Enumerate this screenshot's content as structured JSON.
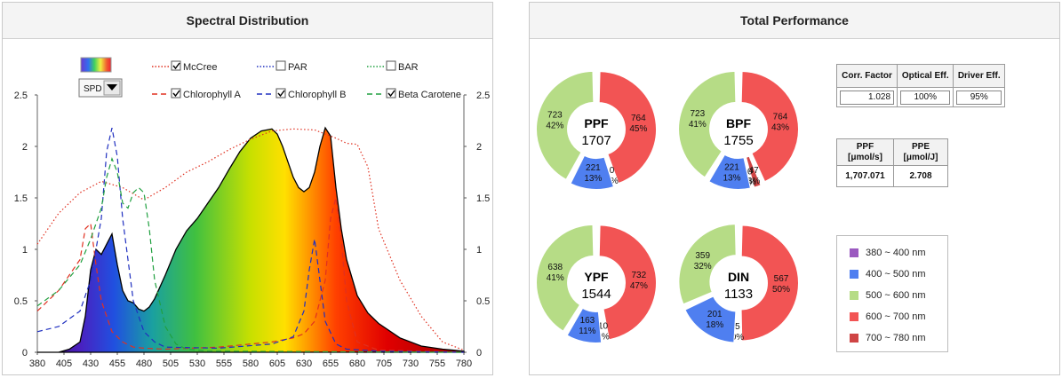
{
  "left_panel": {
    "title": "Spectral Distribution"
  },
  "right_panel": {
    "title": "Total Performance"
  },
  "controls": {
    "dropdown_value": "SPD",
    "legend": [
      {
        "label": "McCree",
        "checked": true,
        "color": "#e03020",
        "dash": "dotted"
      },
      {
        "label": "PAR",
        "checked": false,
        "color": "#2030c0",
        "dash": "dotted"
      },
      {
        "label": "BAR",
        "checked": false,
        "color": "#20a040",
        "dash": "dotted"
      },
      {
        "label": "Chlorophyll A",
        "checked": true,
        "color": "#e03020",
        "dash": "dashed"
      },
      {
        "label": "Chlorophyll B",
        "checked": true,
        "color": "#2030c0",
        "dash": "dashed"
      },
      {
        "label": "Beta Carotene",
        "checked": true,
        "color": "#20a040",
        "dash": "dashed"
      }
    ]
  },
  "chart_data": [
    {
      "type": "area",
      "title": "Spectral Distribution",
      "xlim": [
        380,
        780
      ],
      "ylim": [
        0,
        2.5
      ],
      "x_ticks": [
        380,
        405,
        430,
        455,
        480,
        505,
        530,
        555,
        580,
        605,
        630,
        655,
        680,
        705,
        730,
        755,
        780
      ],
      "y_ticks": [
        0,
        0.5,
        1,
        1.5,
        2,
        2.5
      ],
      "y_tick_labels": [
        "0",
        "0.5",
        "1",
        "1.5",
        "2",
        "2.5"
      ],
      "right_y_tick_labels": [
        "0",
        "0.5",
        "1",
        "1.5",
        "2",
        "2.5"
      ],
      "series": [
        {
          "name": "SPD",
          "x": [
            380,
            400,
            410,
            420,
            425,
            430,
            435,
            440,
            445,
            450,
            455,
            460,
            465,
            470,
            475,
            480,
            485,
            490,
            500,
            510,
            520,
            530,
            540,
            550,
            560,
            570,
            580,
            590,
            600,
            605,
            610,
            615,
            620,
            625,
            630,
            635,
            640,
            645,
            650,
            655,
            660,
            665,
            670,
            680,
            690,
            700,
            720,
            740,
            760,
            780
          ],
          "y": [
            0,
            0,
            0.03,
            0.1,
            0.35,
            0.8,
            1.0,
            0.95,
            1.05,
            1.15,
            0.85,
            0.6,
            0.5,
            0.48,
            0.42,
            0.4,
            0.44,
            0.52,
            0.75,
            1.0,
            1.18,
            1.3,
            1.45,
            1.6,
            1.78,
            1.95,
            2.08,
            2.15,
            2.17,
            2.12,
            2.0,
            1.85,
            1.7,
            1.6,
            1.56,
            1.6,
            1.75,
            2.0,
            2.18,
            2.1,
            1.6,
            1.2,
            0.9,
            0.55,
            0.38,
            0.28,
            0.14,
            0.06,
            0.03,
            0.01
          ]
        },
        {
          "name": "McCree",
          "x": [
            380,
            400,
            420,
            440,
            460,
            480,
            500,
            520,
            540,
            560,
            580,
            600,
            620,
            640,
            660,
            670,
            680,
            690,
            700,
            720,
            740,
            760,
            780
          ],
          "y": [
            1.05,
            1.35,
            1.55,
            1.66,
            1.6,
            1.48,
            1.6,
            1.75,
            1.85,
            1.97,
            2.07,
            2.15,
            2.17,
            2.16,
            2.08,
            2.03,
            2.02,
            1.8,
            1.2,
            0.7,
            0.35,
            0.1,
            0.02
          ]
        },
        {
          "name": "Chlorophyll A",
          "x": [
            380,
            390,
            400,
            410,
            420,
            425,
            430,
            435,
            440,
            450,
            460,
            470,
            480,
            500,
            550,
            600,
            620,
            630,
            640,
            650,
            655,
            660,
            665,
            670,
            680,
            700,
            780
          ],
          "y": [
            0.4,
            0.5,
            0.6,
            0.75,
            0.9,
            1.2,
            1.25,
            0.85,
            0.5,
            0.2,
            0.1,
            0.05,
            0.04,
            0.03,
            0.05,
            0.1,
            0.14,
            0.18,
            0.3,
            0.7,
            1.3,
            1.5,
            1.1,
            0.5,
            0.1,
            0.02,
            0
          ]
        },
        {
          "name": "Chlorophyll B",
          "x": [
            380,
            400,
            420,
            430,
            440,
            445,
            450,
            455,
            460,
            470,
            480,
            490,
            500,
            550,
            600,
            620,
            630,
            635,
            640,
            645,
            650,
            660,
            670,
            700,
            780
          ],
          "y": [
            0.2,
            0.25,
            0.4,
            0.7,
            1.3,
            1.95,
            2.18,
            1.9,
            1.3,
            0.5,
            0.2,
            0.1,
            0.05,
            0.04,
            0.08,
            0.15,
            0.4,
            0.8,
            1.1,
            0.7,
            0.3,
            0.08,
            0.03,
            0.01,
            0
          ]
        },
        {
          "name": "Beta Carotene",
          "x": [
            380,
            400,
            420,
            430,
            440,
            445,
            450,
            455,
            460,
            465,
            470,
            475,
            480,
            485,
            490,
            500,
            510,
            520,
            540,
            780
          ],
          "y": [
            0.45,
            0.6,
            0.85,
            1.1,
            1.4,
            1.7,
            1.88,
            1.75,
            1.45,
            1.4,
            1.55,
            1.6,
            1.55,
            1.2,
            0.7,
            0.25,
            0.08,
            0.03,
            0.01,
            0
          ]
        }
      ]
    },
    {
      "type": "pie",
      "center_label": "PPF",
      "total": "1707",
      "slices": [
        {
          "value": "764",
          "percent": "45%",
          "color": "#f25454"
        },
        {
          "value": "0",
          "percent": "0%",
          "color": "#cf4444"
        },
        {
          "value": "221",
          "percent": "13%",
          "color": "#4f7ff0"
        },
        {
          "value": "723",
          "percent": "42%",
          "color": "#b6dc86"
        }
      ]
    },
    {
      "type": "pie",
      "center_label": "BPF",
      "total": "1755",
      "slices": [
        {
          "value": "764",
          "percent": "43%",
          "color": "#f25454"
        },
        {
          "value": "47",
          "percent": "3%",
          "color": "#cf4444"
        },
        {
          "value": "0",
          "percent": "0%",
          "color": "#a05cc8"
        },
        {
          "value": "221",
          "percent": "13%",
          "color": "#4f7ff0"
        },
        {
          "value": "723",
          "percent": "41%",
          "color": "#b6dc86"
        }
      ]
    },
    {
      "type": "pie",
      "center_label": "YPF",
      "total": "1544",
      "slices": [
        {
          "value": "732",
          "percent": "47%",
          "color": "#f25454"
        },
        {
          "value": "10",
          "percent": "1%",
          "color": "#cf4444"
        },
        {
          "value": "163",
          "percent": "11%",
          "color": "#4f7ff0"
        },
        {
          "value": "638",
          "percent": "41%",
          "color": "#b6dc86"
        }
      ]
    },
    {
      "type": "pie",
      "center_label": "DIN",
      "total": "1133",
      "slices": [
        {
          "value": "567",
          "percent": "50%",
          "color": "#f25454"
        },
        {
          "value": "5",
          "percent": "0%",
          "color": "#cf4444"
        },
        {
          "value": "201",
          "percent": "18%",
          "color": "#4f7ff0"
        },
        {
          "value": "359",
          "percent": "32%",
          "color": "#b6dc86"
        }
      ]
    }
  ],
  "factors": {
    "headers": [
      "Corr. Factor",
      "Optical Eff.",
      "Driver Eff."
    ],
    "values": [
      "1.028",
      "100%",
      "95%"
    ]
  },
  "ppf_table": {
    "headers": [
      "PPF\n[μmol/s]",
      "PPE\n[μmol/J]"
    ],
    "values": [
      "1,707.071",
      "2.708"
    ]
  },
  "band_legend": [
    {
      "label": "380 ~ 400 nm",
      "color": "#9b59c0"
    },
    {
      "label": "400 ~ 500 nm",
      "color": "#4f7ff0"
    },
    {
      "label": "500 ~ 600 nm",
      "color": "#b6dc86"
    },
    {
      "label": "600 ~ 700 nm",
      "color": "#f25454"
    },
    {
      "label": "700 ~ 780 nm",
      "color": "#cf4444"
    }
  ]
}
